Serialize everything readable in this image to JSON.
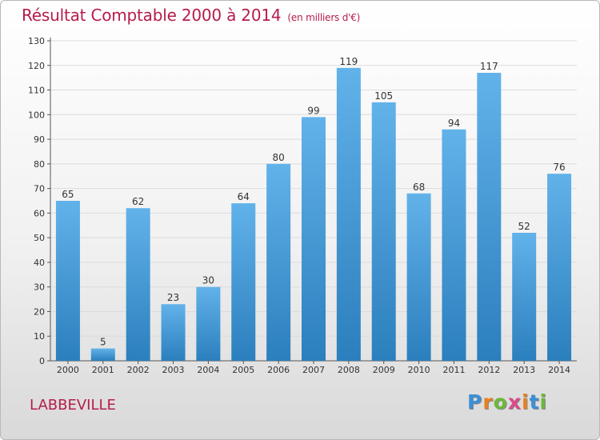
{
  "chart_data": {
    "type": "bar",
    "title": "Résultat Comptable 2000 à 2014",
    "subtitle": "(en milliers d'€)",
    "categories": [
      "2000",
      "2001",
      "2002",
      "2003",
      "2004",
      "2005",
      "2006",
      "2007",
      "2008",
      "2009",
      "2010",
      "2011",
      "2012",
      "2013",
      "2014"
    ],
    "values": [
      65,
      5,
      62,
      23,
      30,
      64,
      80,
      99,
      119,
      105,
      68,
      94,
      117,
      52,
      76
    ],
    "ylim": [
      0,
      130
    ],
    "yticks": [
      0,
      10,
      20,
      30,
      40,
      50,
      60,
      70,
      80,
      90,
      100,
      110,
      120,
      130
    ],
    "xlabel": "",
    "ylabel": "",
    "grid": true,
    "colors": {
      "bar_light": "#62b2ea",
      "bar_dark": "#2b7fbd",
      "title": "#b51d4b"
    }
  },
  "footer": {
    "town": "LABBEVILLE",
    "logo": {
      "letters": [
        "P",
        "r",
        "o",
        "x",
        "i",
        "t",
        "i"
      ],
      "colors": [
        "#3b8fd6",
        "#e8801f",
        "#6db83a",
        "#d94b8a",
        "#e8801f",
        "#3b8fd6",
        "#6db83a"
      ]
    }
  }
}
